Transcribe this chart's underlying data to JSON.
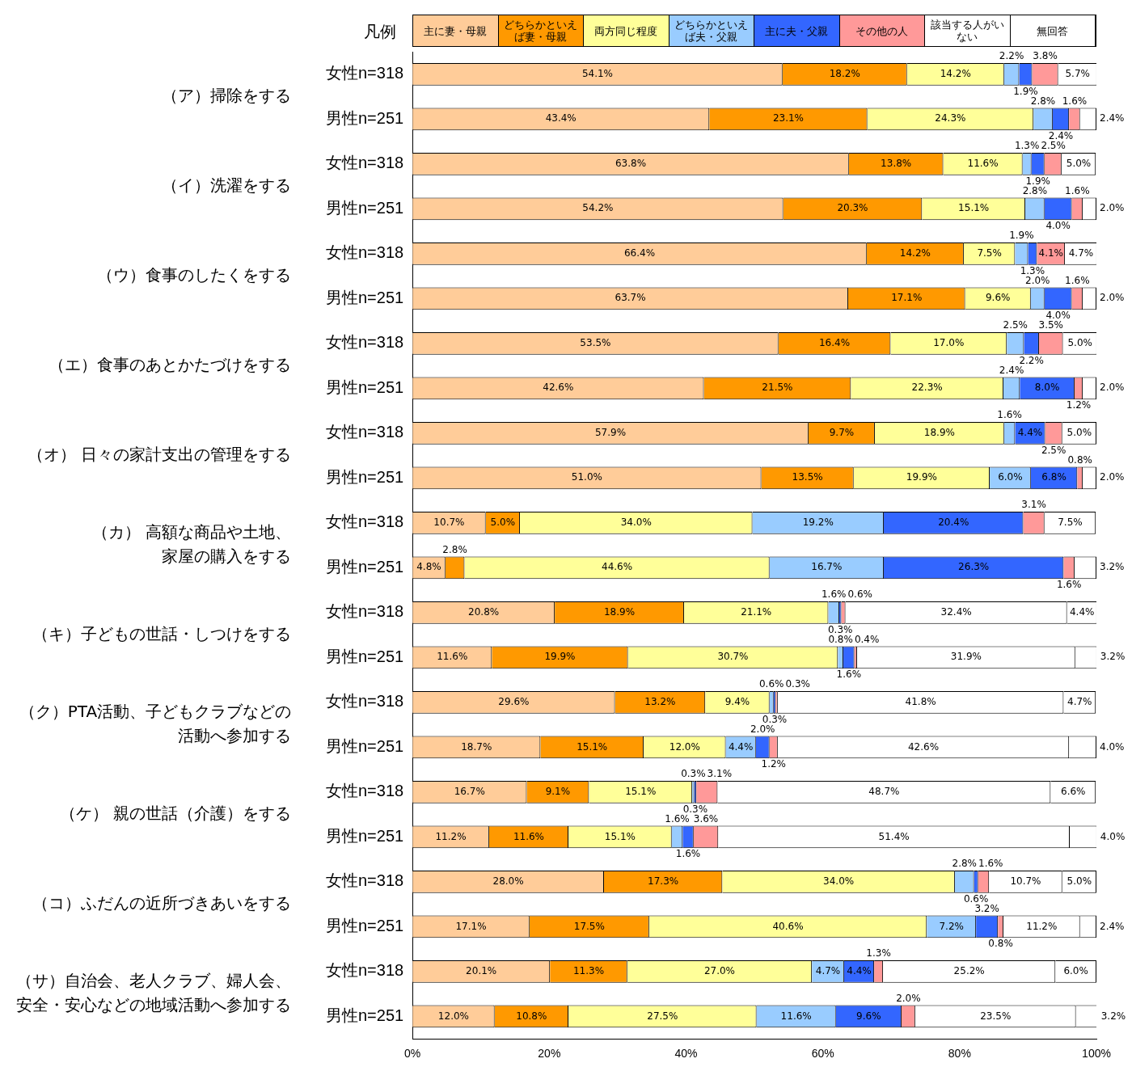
{
  "chart_data": {
    "type": "bar",
    "orientation": "horizontal",
    "stacked": true,
    "legend": "top",
    "legend_title": "凡例",
    "grid": false,
    "categories": [
      "女性n=318",
      "男性n=251",
      "女性n=318",
      "男性n=251",
      "女性n=318",
      "男性n=251",
      "女性n=318",
      "男性n=251",
      "女性n=318",
      "男性n=251",
      "女性n=318",
      "男性n=251",
      "女性n=318",
      "男性n=251",
      "女性n=318",
      "男性n=251",
      "女性n=318",
      "男性n=251",
      "女性n=318",
      "男性n=251",
      "女性n=318",
      "男性n=251"
    ],
    "annotations": [
      "（ア）掃除をする",
      "（イ）洗濯をする",
      "（ウ）食事のしたくをする",
      "（エ）食事のあとかたづけをする",
      "（オ） 日々の家計支出の管理をする",
      "（カ） 高額な商品や土地、家屋の購入をする",
      "（キ）子どもの世話・しつけをする",
      "（ク）PTA活動、子どもクラブなどの活動へ参加する",
      "（ケ） 親の世話（介護）をする",
      "（コ）ふだんの近所づきあいをする",
      "（サ）自治会、老人クラブ、婦人会、安全・安心などの地域活動へ参加する"
    ],
    "xlim": [
      0,
      100
    ],
    "xticks": [
      {
        "value": 0,
        "label": "0%"
      },
      {
        "value": 20,
        "label": "20%"
      },
      {
        "value": 40,
        "label": "40%"
      },
      {
        "value": 60,
        "label": "60%"
      },
      {
        "value": 80,
        "label": "80%"
      },
      {
        "value": 100,
        "label": "100%"
      }
    ],
    "series": [
      {
        "name": "主に妻・母親",
        "color": "#ffcc99",
        "values": [
          54.1,
          43.4,
          63.8,
          54.2,
          66.4,
          63.7,
          53.5,
          42.6,
          57.9,
          51.0,
          10.7,
          4.8,
          20.8,
          11.6,
          29.6,
          18.7,
          16.7,
          11.2,
          28.0,
          17.1,
          20.1,
          12.0
        ],
        "value_labels": [
          "54.1%",
          "43.4%",
          "63.8%",
          "54.2%",
          "66.4%",
          "63.7%",
          "53.5%",
          "42.6%",
          "57.9%",
          "51.0%",
          "10.7%",
          "4.8%",
          "20.8%",
          "11.6%",
          "29.6%",
          "18.7%",
          "16.7%",
          "11.2%",
          "28.0%",
          "17.1%",
          "20.1%",
          "12.0%"
        ]
      },
      {
        "name": "どちらかといえば妻・母親",
        "color": "#ff9900",
        "values": [
          18.2,
          23.1,
          13.8,
          20.3,
          14.2,
          17.1,
          16.4,
          21.5,
          9.7,
          13.5,
          5.0,
          2.8,
          18.9,
          19.9,
          13.2,
          15.1,
          9.1,
          11.6,
          17.3,
          17.5,
          11.3,
          10.8
        ],
        "value_labels": [
          "18.2%",
          "23.1%",
          "13.8%",
          "20.3%",
          "14.2%",
          "17.1%",
          "16.4%",
          "21.5%",
          "9.7%",
          "13.5%",
          "5.0%",
          "2.8%",
          "18.9%",
          "19.9%",
          "13.2%",
          "15.1%",
          "9.1%",
          "11.6%",
          "17.3%",
          "17.5%",
          "11.3%",
          "10.8%"
        ]
      },
      {
        "name": "両方同じ程度",
        "color": "#ffff99",
        "values": [
          14.2,
          24.3,
          11.6,
          15.1,
          7.5,
          9.6,
          17.0,
          22.3,
          18.9,
          19.9,
          34.0,
          44.6,
          21.1,
          30.7,
          9.4,
          12.0,
          15.1,
          15.1,
          34.0,
          40.6,
          27.0,
          27.5
        ],
        "value_labels": [
          "14.2%",
          "24.3%",
          "11.6%",
          "15.1%",
          "7.5%",
          "9.6%",
          "17.0%",
          "22.3%",
          "18.9%",
          "19.9%",
          "34.0%",
          "44.6%",
          "21.1%",
          "30.7%",
          "9.4%",
          "12.0%",
          "15.1%",
          "15.1%",
          "34.0%",
          "40.6%",
          "27.0%",
          "27.5%"
        ]
      },
      {
        "name": "どちらかといえば夫・父親",
        "color": "#99ccff",
        "values": [
          2.2,
          2.8,
          1.3,
          2.8,
          1.9,
          2.0,
          2.5,
          2.4,
          1.6,
          6.0,
          19.2,
          16.7,
          1.6,
          0.8,
          0.6,
          4.4,
          0.3,
          1.6,
          2.8,
          7.2,
          4.7,
          11.6
        ],
        "value_labels": [
          "2.2%",
          "2.8%",
          "1.3%",
          "2.8%",
          "1.9%",
          "2.0%",
          "2.5%",
          "2.4%",
          "1.6%",
          "6.0%",
          "19.2%",
          "16.7%",
          "1.6%",
          "0.8%",
          "0.6%",
          "4.4%",
          "0.3%",
          "1.6%",
          "2.8%",
          "7.2%",
          "4.7%",
          "11.6%"
        ]
      },
      {
        "name": "主に夫・父親",
        "color": "#3366ff",
        "values": [
          1.9,
          2.4,
          1.9,
          4.0,
          1.3,
          4.0,
          2.2,
          8.0,
          4.4,
          6.8,
          20.4,
          26.3,
          0.3,
          1.6,
          0.3,
          2.0,
          0.3,
          1.6,
          0.6,
          3.2,
          4.4,
          9.6
        ],
        "value_labels": [
          "1.9%",
          "2.4%",
          "1.9%",
          "4.0%",
          "1.3%",
          "4.0%",
          "2.2%",
          "8.0%",
          "4.4%",
          "6.8%",
          "20.4%",
          "26.3%",
          "0.3%",
          "1.6%",
          "0.3%",
          "2.0%",
          "0.3%",
          "1.6%",
          "0.6%",
          "3.2%",
          "4.4%",
          "9.6%"
        ]
      },
      {
        "name": "その他の人",
        "color": "#ff9999",
        "values": [
          3.8,
          1.6,
          2.5,
          1.6,
          4.1,
          1.6,
          3.5,
          1.2,
          2.5,
          0.8,
          3.1,
          1.6,
          0.6,
          0.4,
          0.3,
          1.2,
          3.1,
          3.6,
          1.6,
          0.8,
          1.3,
          2.0
        ],
        "value_labels": [
          "3.8%",
          "1.6%",
          "2.5%",
          "1.6%",
          "4.1%",
          "1.6%",
          "3.5%",
          "1.2%",
          "2.5%",
          "0.8%",
          "3.1%",
          "1.6%",
          "0.6%",
          "0.4%",
          "0.3%",
          "1.2%",
          "3.1%",
          "3.6%",
          "1.6%",
          "0.8%",
          "1.3%",
          "2.0%"
        ]
      },
      {
        "name": "該当する人がいない",
        "color": "#ffffff",
        "values": [
          null,
          null,
          null,
          null,
          null,
          null,
          null,
          null,
          null,
          null,
          null,
          null,
          32.4,
          31.9,
          41.8,
          42.6,
          48.7,
          51.4,
          10.7,
          11.2,
          25.2,
          23.5
        ],
        "value_labels": [
          null,
          null,
          null,
          null,
          null,
          null,
          null,
          null,
          null,
          null,
          null,
          null,
          "32.4%",
          "31.9%",
          "41.8%",
          "42.6%",
          "48.7%",
          "51.4%",
          "10.7%",
          "11.2%",
          "25.2%",
          "23.5%"
        ]
      },
      {
        "name": "無回答",
        "color": "#ffffff",
        "values": [
          5.7,
          2.4,
          5.0,
          2.0,
          4.7,
          2.0,
          5.0,
          2.0,
          5.0,
          2.0,
          7.5,
          3.2,
          4.4,
          3.2,
          4.7,
          4.0,
          6.6,
          4.0,
          5.0,
          2.4,
          6.0,
          3.2
        ],
        "value_labels": [
          "5.7%",
          "2.4%",
          "5.0%",
          "2.0%",
          "4.7%",
          "2.0%",
          "5.0%",
          "2.0%",
          "5.0%",
          "2.0%",
          "7.5%",
          "3.2%",
          "4.4%",
          "3.2%",
          "4.7%",
          "4.0%",
          "6.6%",
          "4.0%",
          "5.0%",
          "2.4%",
          "6.0%",
          "3.2%"
        ]
      }
    ]
  }
}
